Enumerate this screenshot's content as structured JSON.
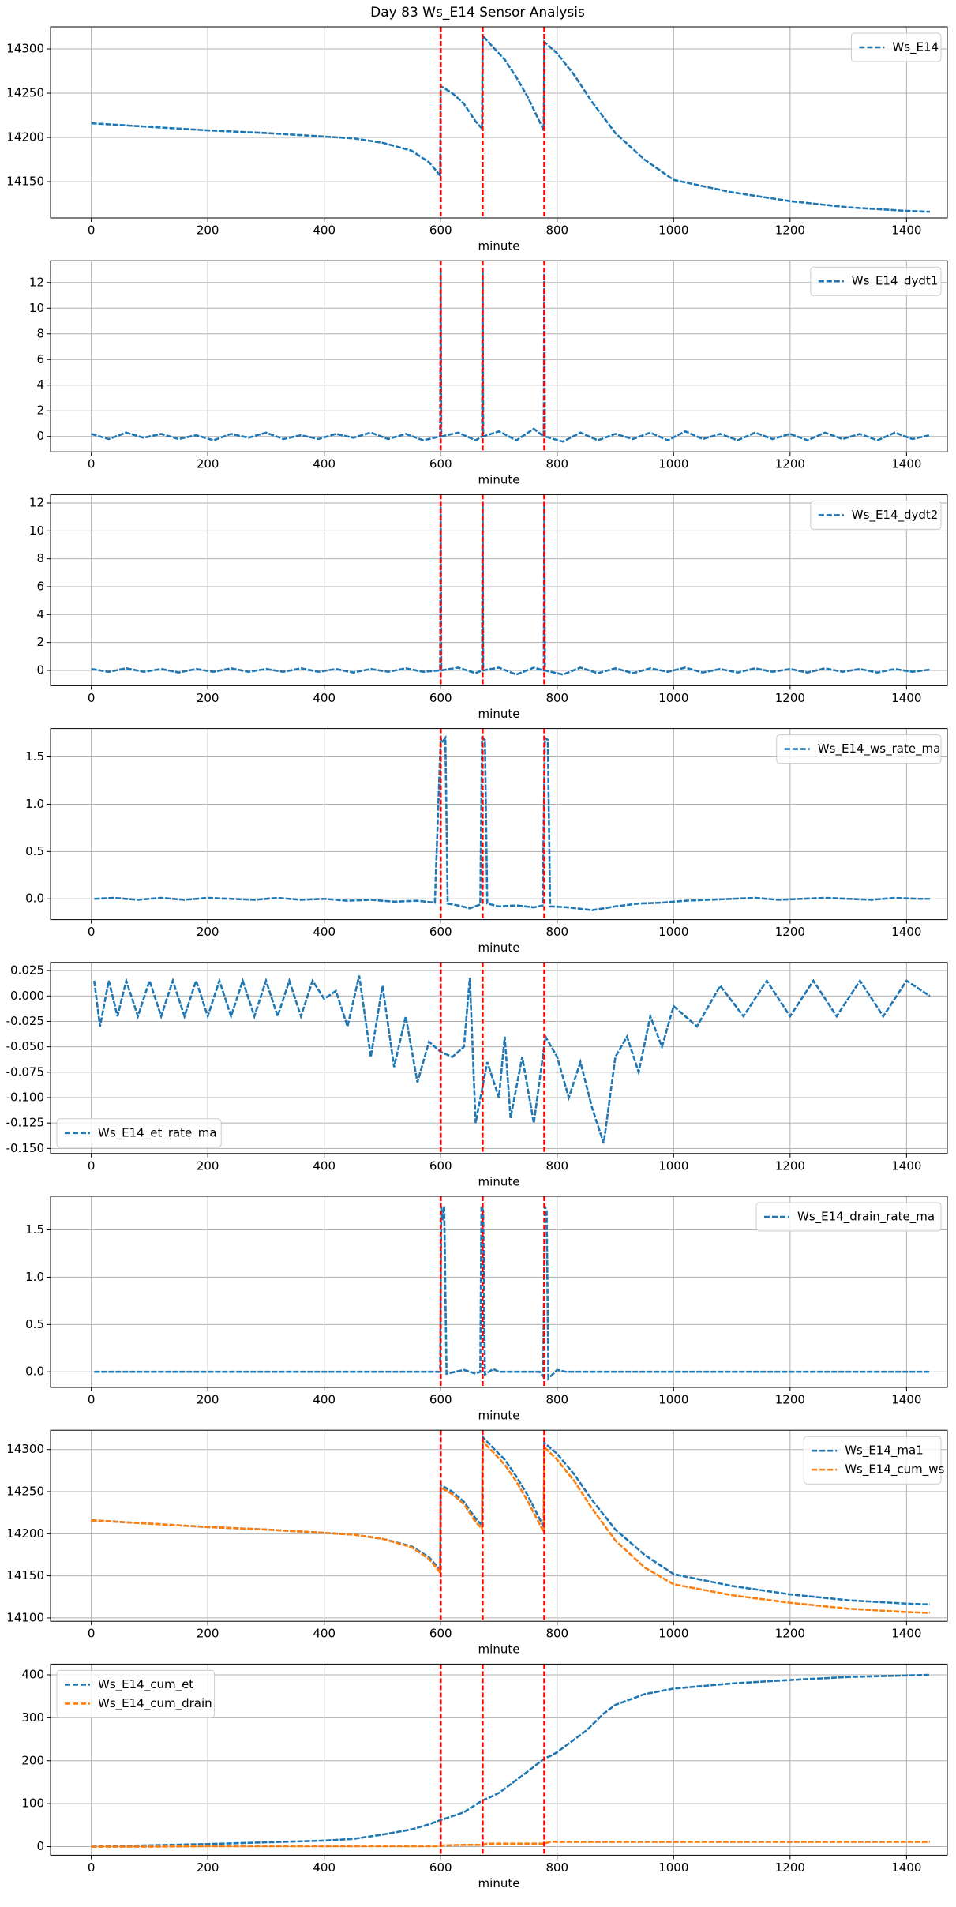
{
  "title": "Day 83 Ws_E14 Sensor Analysis",
  "chart_data": [
    {
      "type": "line",
      "xlabel": "minute",
      "xlim": [
        -70,
        1470
      ],
      "xticks": [
        0,
        200,
        400,
        600,
        800,
        1000,
        1200,
        1400
      ],
      "ylim": [
        14109,
        14325
      ],
      "yticks": [
        14150,
        14200,
        14250,
        14300
      ],
      "grid": true,
      "legend": "upper right",
      "vlines": [
        600,
        672,
        778
      ],
      "vline_color": "#ff0000",
      "x": [
        0,
        100,
        200,
        300,
        400,
        450,
        500,
        550,
        580,
        599,
        600,
        620,
        640,
        660,
        671,
        672,
        690,
        710,
        730,
        750,
        777,
        778,
        800,
        830,
        860,
        900,
        950,
        1000,
        1100,
        1200,
        1300,
        1400,
        1440
      ],
      "series": [
        {
          "name": "Ws_E14",
          "color": "#1f77b4",
          "values": [
            14216,
            14212,
            14208,
            14205,
            14201,
            14199,
            14194,
            14185,
            14172,
            14157,
            14258,
            14250,
            14238,
            14218,
            14210,
            14315,
            14302,
            14288,
            14268,
            14245,
            14208,
            14308,
            14295,
            14270,
            14240,
            14205,
            14175,
            14152,
            14138,
            14128,
            14121,
            14117,
            14116
          ]
        }
      ]
    },
    {
      "type": "line",
      "xlabel": "minute",
      "xlim": [
        -70,
        1470
      ],
      "xticks": [
        0,
        200,
        400,
        600,
        800,
        1000,
        1200,
        1400
      ],
      "ylim": [
        -1.2,
        13.7
      ],
      "yticks": [
        0,
        2,
        4,
        6,
        8,
        10,
        12
      ],
      "grid": true,
      "legend": "upper right",
      "vlines": [
        600,
        672,
        778
      ],
      "vline_color": "#ff0000",
      "x": [
        0,
        30,
        60,
        90,
        120,
        150,
        180,
        210,
        240,
        270,
        300,
        330,
        360,
        390,
        420,
        450,
        480,
        510,
        540,
        570,
        599,
        600,
        601,
        630,
        660,
        671,
        672,
        673,
        700,
        730,
        760,
        777,
        778,
        779,
        810,
        840,
        870,
        900,
        930,
        960,
        990,
        1020,
        1050,
        1080,
        1110,
        1140,
        1170,
        1200,
        1230,
        1260,
        1290,
        1320,
        1350,
        1380,
        1410,
        1440
      ],
      "series": [
        {
          "name": "Ws_E14_dydt1",
          "color": "#1f77b4",
          "values": [
            0.2,
            -0.2,
            0.3,
            -0.1,
            0.2,
            -0.2,
            0.1,
            -0.3,
            0.2,
            -0.1,
            0.3,
            -0.2,
            0.1,
            -0.2,
            0.2,
            -0.1,
            0.3,
            -0.2,
            0.2,
            -0.3,
            0,
            13,
            0,
            0.3,
            -0.3,
            0,
            13,
            0,
            0.4,
            -0.3,
            0.6,
            0,
            13,
            0,
            -0.4,
            0.3,
            -0.3,
            0.2,
            -0.2,
            0.3,
            -0.3,
            0.4,
            -0.2,
            0.2,
            -0.3,
            0.3,
            -0.2,
            0.2,
            -0.3,
            0.3,
            -0.2,
            0.2,
            -0.3,
            0.3,
            -0.2,
            0.1
          ]
        }
      ]
    },
    {
      "type": "line",
      "xlabel": "minute",
      "xlim": [
        -70,
        1470
      ],
      "xticks": [
        0,
        200,
        400,
        600,
        800,
        1000,
        1200,
        1400
      ],
      "ylim": [
        -1.1,
        12.6
      ],
      "yticks": [
        0,
        2,
        4,
        6,
        8,
        10,
        12
      ],
      "grid": true,
      "legend": "upper right",
      "vlines": [
        600,
        672,
        778
      ],
      "vline_color": "#ff0000",
      "x": [
        0,
        30,
        60,
        90,
        120,
        150,
        180,
        210,
        240,
        270,
        300,
        330,
        360,
        390,
        420,
        450,
        480,
        510,
        540,
        570,
        599,
        600,
        601,
        630,
        660,
        671,
        672,
        673,
        700,
        730,
        760,
        777,
        778,
        779,
        810,
        840,
        870,
        900,
        930,
        960,
        990,
        1020,
        1050,
        1080,
        1110,
        1140,
        1170,
        1200,
        1230,
        1260,
        1290,
        1320,
        1350,
        1380,
        1410,
        1440
      ],
      "series": [
        {
          "name": "Ws_E14_dydt2",
          "color": "#1f77b4",
          "values": [
            0.1,
            -0.1,
            0.15,
            -0.1,
            0.1,
            -0.15,
            0.1,
            -0.1,
            0.15,
            -0.1,
            0.1,
            -0.1,
            0.15,
            -0.1,
            0.1,
            -0.15,
            0.1,
            -0.1,
            0.15,
            -0.1,
            0,
            12,
            0,
            0.2,
            -0.2,
            0,
            12,
            0,
            0.2,
            -0.3,
            0.2,
            0,
            12,
            0,
            -0.3,
            0.2,
            -0.2,
            0.15,
            -0.2,
            0.15,
            -0.1,
            0.2,
            -0.15,
            0.1,
            -0.15,
            0.15,
            -0.1,
            0.1,
            -0.15,
            0.15,
            -0.1,
            0.1,
            -0.15,
            0.1,
            -0.1,
            0.05
          ]
        }
      ]
    },
    {
      "type": "line",
      "xlabel": "minute",
      "xlim": [
        -70,
        1470
      ],
      "xticks": [
        0,
        200,
        400,
        600,
        800,
        1000,
        1200,
        1400
      ],
      "ylim": [
        -0.22,
        1.8
      ],
      "yticks": [
        {
          "value": 0,
          "label": "0.0"
        },
        0.5,
        {
          "value": 1,
          "label": "1.0"
        },
        1.5
      ],
      "grid": true,
      "legend": "upper right",
      "vlines": [
        600,
        672,
        778
      ],
      "vline_color": "#ff0000",
      "x": [
        5,
        40,
        80,
        120,
        160,
        200,
        240,
        280,
        320,
        360,
        400,
        440,
        480,
        520,
        560,
        590,
        600,
        602,
        608,
        612,
        630,
        650,
        668,
        671,
        676,
        680,
        700,
        730,
        760,
        775,
        779,
        784,
        788,
        820,
        860,
        900,
        940,
        980,
        1020,
        1060,
        1100,
        1140,
        1180,
        1220,
        1260,
        1300,
        1340,
        1380,
        1420,
        1440
      ],
      "series": [
        {
          "name": "Ws_E14_ws_rate_ma",
          "color": "#1f77b4",
          "values": [
            0,
            0.01,
            -0.01,
            0.01,
            -0.01,
            0.01,
            0,
            -0.01,
            0.01,
            -0.01,
            0,
            -0.02,
            -0.01,
            -0.03,
            -0.02,
            -0.04,
            1.7,
            1.65,
            1.7,
            -0.05,
            -0.07,
            -0.1,
            -0.06,
            1.7,
            1.68,
            -0.05,
            -0.08,
            -0.07,
            -0.09,
            -0.07,
            1.7,
            1.68,
            -0.08,
            -0.09,
            -0.12,
            -0.08,
            -0.05,
            -0.04,
            -0.02,
            -0.01,
            0,
            0.01,
            -0.01,
            0,
            0.01,
            0,
            -0.01,
            0.01,
            0,
            0
          ]
        }
      ]
    },
    {
      "type": "line",
      "xlabel": "minute",
      "xlim": [
        -70,
        1470
      ],
      "xticks": [
        0,
        200,
        400,
        600,
        800,
        1000,
        1200,
        1400
      ],
      "ylim": [
        -0.155,
        0.033
      ],
      "yticks": [
        {
          "value": 0.025,
          "label": "0.025"
        },
        {
          "value": 0,
          "label": "0.000"
        },
        {
          "value": -0.025,
          "label": "-0.025"
        },
        {
          "value": -0.05,
          "label": "-0.050"
        },
        {
          "value": -0.075,
          "label": "-0.075"
        },
        {
          "value": -0.1,
          "label": "-0.100"
        },
        {
          "value": -0.125,
          "label": "-0.125"
        },
        {
          "value": -0.15,
          "label": "-0.150"
        }
      ],
      "grid": true,
      "legend": "lower left",
      "vlines": [
        600,
        672,
        778
      ],
      "vline_color": "#ff0000",
      "x": [
        5,
        15,
        30,
        45,
        60,
        80,
        100,
        120,
        140,
        160,
        180,
        200,
        220,
        240,
        260,
        280,
        300,
        320,
        340,
        360,
        380,
        400,
        420,
        440,
        460,
        480,
        500,
        520,
        540,
        560,
        580,
        600,
        620,
        640,
        650,
        660,
        680,
        700,
        710,
        720,
        740,
        760,
        780,
        800,
        820,
        840,
        860,
        880,
        900,
        920,
        940,
        960,
        980,
        1000,
        1040,
        1080,
        1120,
        1160,
        1200,
        1240,
        1280,
        1320,
        1360,
        1400,
        1440
      ],
      "series": [
        {
          "name": "Ws_E14_et_rate_ma",
          "color": "#1f77b4",
          "values": [
            0.015,
            -0.03,
            0.015,
            -0.02,
            0.015,
            -0.02,
            0.015,
            -0.02,
            0.015,
            -0.02,
            0.015,
            -0.02,
            0.015,
            -0.02,
            0.015,
            -0.02,
            0.015,
            -0.02,
            0.015,
            -0.02,
            0.015,
            -0.003,
            0.005,
            -0.03,
            0.02,
            -0.06,
            0.01,
            -0.07,
            -0.02,
            -0.085,
            -0.045,
            -0.055,
            -0.06,
            -0.05,
            0.018,
            -0.125,
            -0.065,
            -0.1,
            -0.04,
            -0.12,
            -0.06,
            -0.125,
            -0.04,
            -0.06,
            -0.1,
            -0.065,
            -0.11,
            -0.145,
            -0.06,
            -0.04,
            -0.075,
            -0.02,
            -0.05,
            -0.01,
            -0.03,
            0.01,
            -0.02,
            0.015,
            -0.02,
            0.015,
            -0.02,
            0.015,
            -0.02,
            0.015,
            0
          ]
        }
      ]
    },
    {
      "type": "line",
      "xlabel": "minute",
      "xlim": [
        -70,
        1470
      ],
      "xticks": [
        0,
        200,
        400,
        600,
        800,
        1000,
        1200,
        1400
      ],
      "ylim": [
        -0.165,
        1.855
      ],
      "yticks": [
        {
          "value": 0,
          "label": "0.0"
        },
        0.5,
        {
          "value": 1,
          "label": "1.0"
        },
        1.5
      ],
      "grid": true,
      "legend": "upper right",
      "vlines": [
        600,
        672,
        778
      ],
      "vline_color": "#ff0000",
      "x": [
        5,
        590,
        599,
        601,
        603,
        606,
        610,
        640,
        660,
        668,
        670,
        673,
        676,
        690,
        700,
        770,
        776,
        779,
        782,
        785,
        800,
        815,
        830,
        1440
      ],
      "series": [
        {
          "name": "Ws_E14_drain_rate_ma",
          "color": "#1f77b4",
          "values": [
            0,
            0,
            0,
            1.75,
            1.6,
            1.75,
            -0.02,
            0.02,
            -0.02,
            0,
            1.75,
            1.7,
            -0.03,
            0.03,
            0,
            0,
            -0.05,
            1.75,
            1.7,
            -0.07,
            0.02,
            0,
            0,
            0
          ]
        }
      ]
    },
    {
      "type": "line",
      "xlabel": "minute",
      "xlim": [
        -70,
        1470
      ],
      "xticks": [
        0,
        200,
        400,
        600,
        800,
        1000,
        1200,
        1400
      ],
      "ylim": [
        14096,
        14323
      ],
      "yticks": [
        14100,
        14150,
        14200,
        14250,
        14300
      ],
      "grid": true,
      "legend": "upper right",
      "vlines": [
        600,
        672,
        778
      ],
      "vline_color": "#ff0000",
      "x": [
        0,
        100,
        200,
        300,
        400,
        450,
        500,
        550,
        580,
        599,
        600,
        620,
        640,
        660,
        671,
        672,
        690,
        710,
        730,
        750,
        777,
        778,
        800,
        830,
        860,
        900,
        950,
        1000,
        1100,
        1200,
        1300,
        1400,
        1440
      ],
      "series": [
        {
          "name": "Ws_E14_ma1",
          "color": "#1f77b4",
          "values": [
            14216,
            14212,
            14208,
            14205,
            14201,
            14199,
            14194,
            14185,
            14172,
            14157,
            14258,
            14250,
            14238,
            14218,
            14210,
            14315,
            14302,
            14288,
            14268,
            14245,
            14208,
            14308,
            14295,
            14270,
            14240,
            14205,
            14175,
            14152,
            14138,
            14128,
            14121,
            14117,
            14116
          ]
        },
        {
          "name": "Ws_E14_cum_ws",
          "color": "#ff7f0e",
          "values": [
            14216,
            14212,
            14208,
            14205,
            14201,
            14199,
            14194,
            14184,
            14170,
            14154,
            14255,
            14247,
            14235,
            14214,
            14206,
            14310,
            14297,
            14282,
            14262,
            14238,
            14202,
            14303,
            14288,
            14262,
            14230,
            14192,
            14160,
            14140,
            14127,
            14118,
            14111,
            14107,
            14106
          ]
        }
      ]
    },
    {
      "type": "line",
      "xlabel": "minute",
      "xlim": [
        -70,
        1470
      ],
      "xticks": [
        0,
        200,
        400,
        600,
        800,
        1000,
        1200,
        1400
      ],
      "ylim": [
        -20,
        425
      ],
      "yticks": [
        0,
        100,
        200,
        300,
        400
      ],
      "grid": true,
      "legend": "upper left",
      "vlines": [
        600,
        672,
        778
      ],
      "vline_color": "#ff0000",
      "x": [
        0,
        100,
        200,
        300,
        400,
        450,
        500,
        550,
        580,
        600,
        605,
        640,
        672,
        680,
        700,
        740,
        778,
        790,
        800,
        850,
        880,
        900,
        950,
        1000,
        1100,
        1200,
        1300,
        1440
      ],
      "series": [
        {
          "name": "Ws_E14_cum_et",
          "color": "#1f77b4",
          "values": [
            0,
            3,
            6,
            10,
            14,
            18,
            28,
            40,
            52,
            62,
            64,
            80,
            108,
            112,
            125,
            165,
            205,
            212,
            220,
            270,
            310,
            330,
            355,
            368,
            380,
            388,
            395,
            400
          ]
        },
        {
          "name": "Ws_E14_cum_drain",
          "color": "#ff7f0e",
          "values": [
            0,
            0,
            1,
            1,
            1,
            1,
            1,
            1,
            1,
            1,
            3,
            4,
            4,
            7,
            7,
            7,
            7,
            12,
            11,
            11,
            11,
            11,
            11,
            11,
            11,
            11,
            11,
            11
          ]
        }
      ]
    }
  ]
}
